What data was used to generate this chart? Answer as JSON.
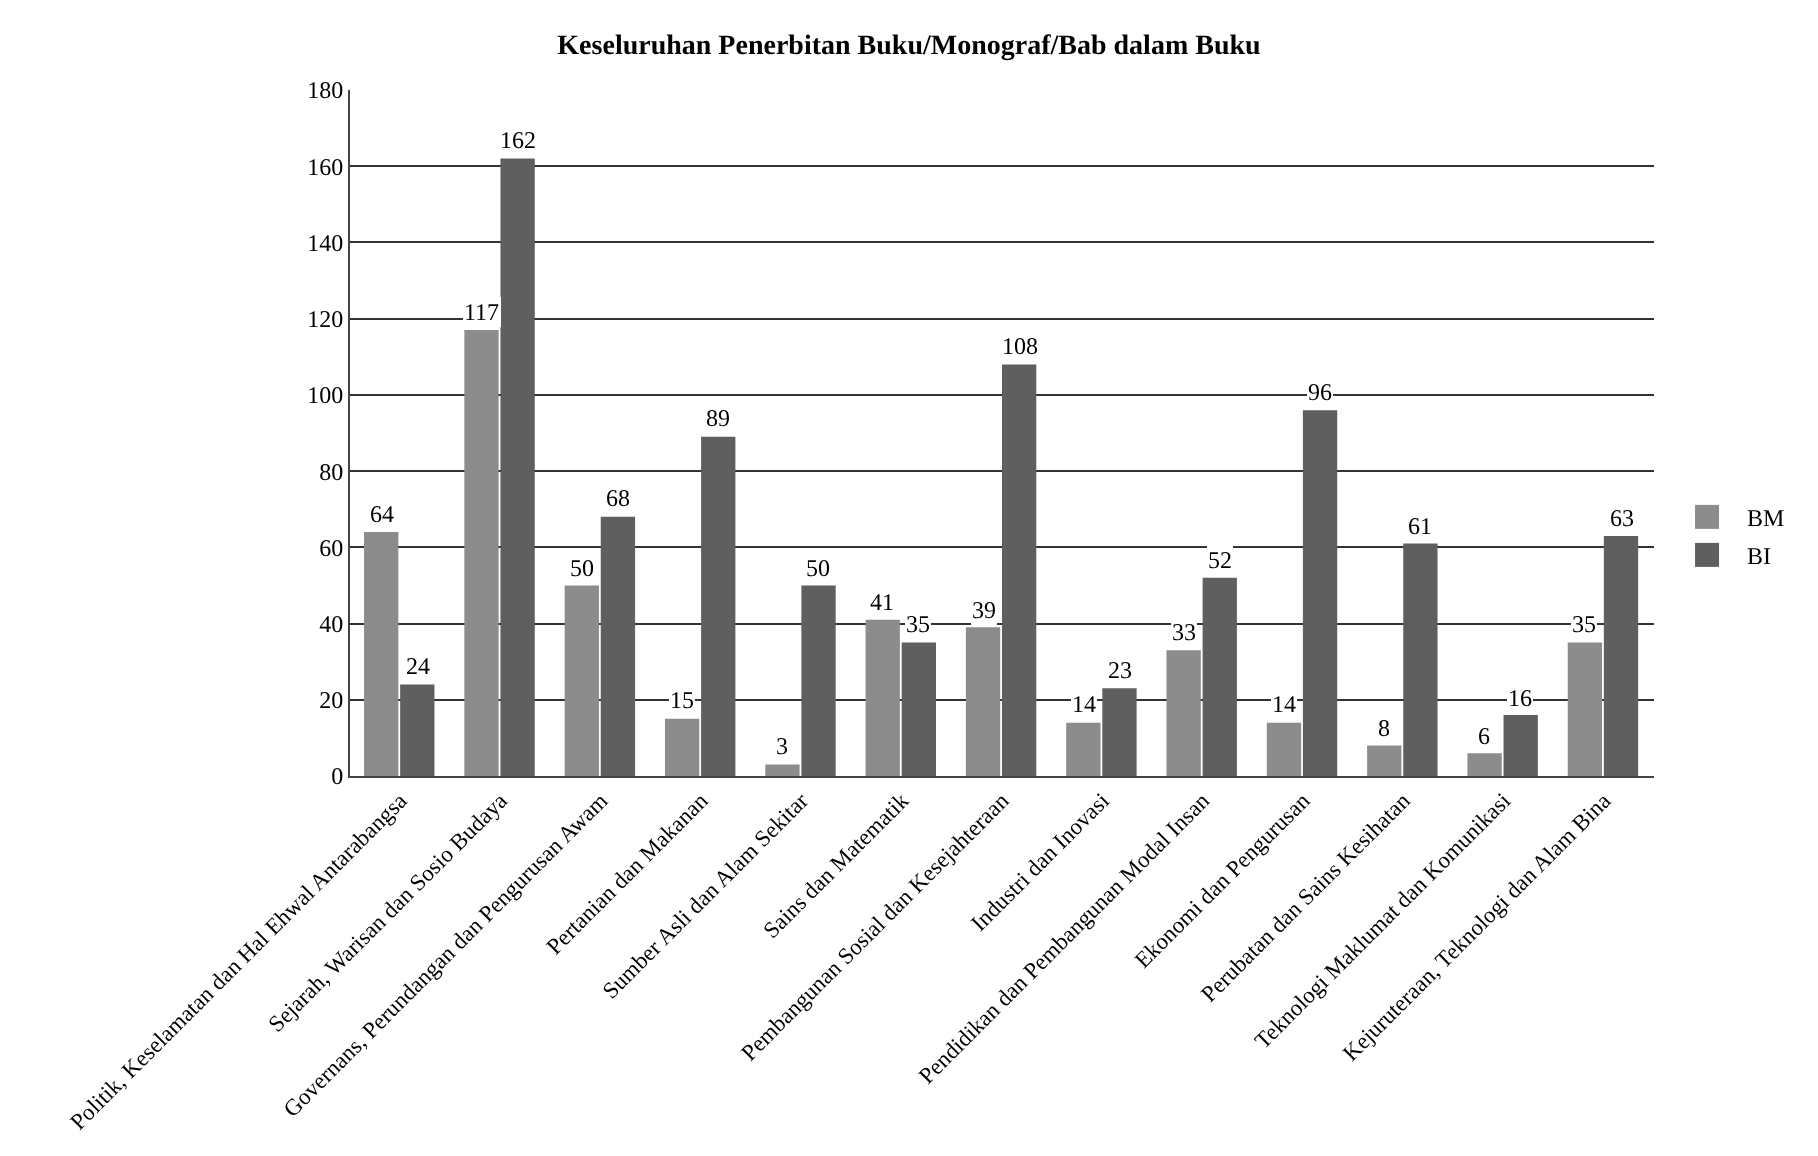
{
  "chart_data": {
    "type": "bar",
    "title": "Keseluruhan Penerbitan Buku/Monograf/Bab dalam Buku",
    "categories": [
      "Politik, Keselamatan dan Hal Ehwal Antarabangsa",
      "Sejarah, Warisan dan Sosio Budaya",
      "Governans, Perundangan dan Pengurusan Awam",
      "Pertanian dan Makanan",
      "Sumber Asli dan Alam Sekitar",
      "Sains dan Matematik",
      "Pembangunan Sosial dan Kesejahteraan",
      "Industri dan Inovasi",
      "Pendidikan dan Pembangunan Modal Insan",
      "Ekonomi dan Pengurusan",
      "Perubatan dan Sains Kesihatan",
      "Teknologi Maklumat dan Komunikasi",
      "Kejuruteraan, Teknologi dan Alam Bina"
    ],
    "series": [
      {
        "name": "BM",
        "color": "#8c8c8c",
        "values": [
          64,
          117,
          50,
          15,
          3,
          41,
          39,
          14,
          33,
          14,
          8,
          6,
          35
        ]
      },
      {
        "name": "BI",
        "color": "#5f5f5f",
        "values": [
          24,
          162,
          68,
          89,
          50,
          35,
          108,
          23,
          52,
          96,
          61,
          16,
          63
        ]
      }
    ],
    "ylim": [
      0,
      180
    ],
    "yticks": [
      0,
      20,
      40,
      60,
      80,
      100,
      120,
      140,
      160,
      180
    ],
    "grid": "y",
    "legend": "right",
    "data_labels": true
  }
}
